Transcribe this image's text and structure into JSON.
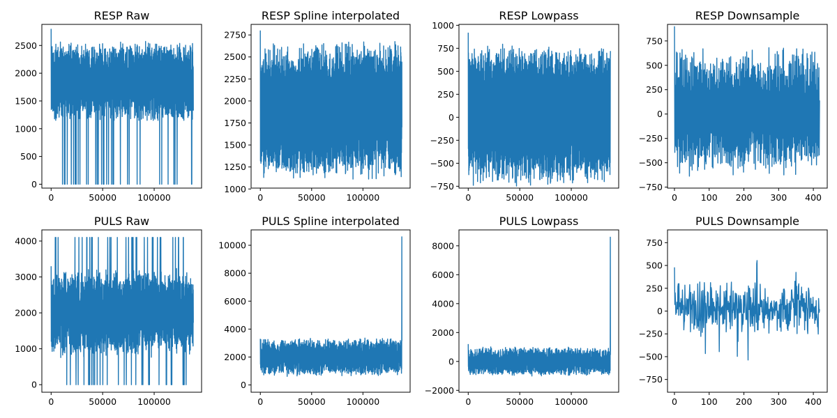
{
  "figure": {
    "background": "#ffffff",
    "line_color": "#1f77b4"
  },
  "chart_data": [
    {
      "type": "line",
      "title": "RESP Raw",
      "xlim": [
        -9000,
        146000
      ],
      "ylim": [
        -70,
        2880
      ],
      "xticks": [
        0,
        50000,
        100000
      ],
      "xtick_labels": [
        "0",
        "50000",
        "100000"
      ],
      "yticks": [
        0,
        500,
        1000,
        1500,
        2000,
        2500
      ],
      "ytick_labels": [
        "0",
        "500",
        "1000",
        "1500",
        "2000",
        "2500"
      ],
      "series": [
        {
          "x_range": [
            0,
            138000
          ],
          "points": 1200,
          "signal": {
            "kind": "dropout",
            "base": 1850,
            "amp": 500,
            "noise": 250,
            "clip_lo": 1150,
            "clip_hi": 2780,
            "drop": 0.035,
            "drop_val": 0,
            "seed": 11,
            "start": 2800
          }
        }
      ]
    },
    {
      "type": "line",
      "title": "RESP Spline interpolated",
      "xlim": [
        -9000,
        146000
      ],
      "ylim": [
        1010,
        2870
      ],
      "xticks": [
        0,
        50000,
        100000
      ],
      "xtick_labels": [
        "0",
        "50000",
        "100000"
      ],
      "yticks": [
        1000,
        1250,
        1500,
        1750,
        2000,
        2250,
        2500,
        2750
      ],
      "ytick_labels": [
        "1000",
        "1250",
        "1500",
        "1750",
        "2000",
        "2250",
        "2500",
        "2750"
      ],
      "series": [
        {
          "x_range": [
            0,
            138000
          ],
          "points": 1200,
          "signal": {
            "kind": "osc",
            "base": 1900,
            "amp": 620,
            "noise": 180,
            "clip_lo": 1080,
            "clip_hi": 2760,
            "seed": 12,
            "start": 2800,
            "end": 1700
          }
        }
      ]
    },
    {
      "type": "line",
      "title": "RESP Lowpass",
      "xlim": [
        -9000,
        146000
      ],
      "ylim": [
        -770,
        1010
      ],
      "xticks": [
        0,
        50000,
        100000
      ],
      "xtick_labels": [
        "0",
        "50000",
        "100000"
      ],
      "yticks": [
        -750,
        -500,
        -250,
        0,
        250,
        500,
        750,
        1000
      ],
      "ytick_labels": [
        "−750",
        "−500",
        "−250",
        "0",
        "250",
        "500",
        "750",
        "1000"
      ],
      "series": [
        {
          "x_range": [
            0,
            138000
          ],
          "points": 1200,
          "signal": {
            "kind": "osc",
            "base": 30,
            "amp": 620,
            "noise": 160,
            "clip_lo": -750,
            "clip_hi": 870,
            "seed": 13,
            "start": 920,
            "end": 720
          }
        }
      ]
    },
    {
      "type": "line",
      "title": "RESP Downsample",
      "xlim": [
        -20,
        440
      ],
      "ylim": [
        -760,
        920
      ],
      "xticks": [
        0,
        100,
        200,
        300,
        400
      ],
      "xtick_labels": [
        "0",
        "100",
        "200",
        "300",
        "400"
      ],
      "yticks": [
        -750,
        -500,
        -250,
        0,
        250,
        500,
        750
      ],
      "ytick_labels": [
        "−750",
        "−500",
        "−250",
        "0",
        "250",
        "500",
        "750"
      ],
      "series": [
        {
          "x_range": [
            0,
            418
          ],
          "points": 419,
          "signal": {
            "kind": "osc",
            "base": 20,
            "amp": 560,
            "noise": 130,
            "clip_lo": -680,
            "clip_hi": 700,
            "seed": 14,
            "start": 900,
            "end": 140
          }
        }
      ]
    },
    {
      "type": "line",
      "title": "PULS Raw",
      "xlim": [
        -9000,
        146000
      ],
      "ylim": [
        -210,
        4310
      ],
      "xticks": [
        0,
        50000,
        100000
      ],
      "xtick_labels": [
        "0",
        "50000",
        "100000"
      ],
      "yticks": [
        0,
        1000,
        2000,
        3000,
        4000
      ],
      "ytick_labels": [
        "0",
        "1000",
        "2000",
        "3000",
        "4000"
      ],
      "series": [
        {
          "x_range": [
            0,
            138000
          ],
          "points": 1200,
          "signal": {
            "kind": "spiky",
            "base": 2000,
            "amp": 800,
            "noise": 450,
            "spike": 0.07,
            "spike_hi": 4100,
            "spike_lo": 0,
            "clip_lo": 0,
            "clip_hi": 4100,
            "seed": 21,
            "start": 3300
          }
        }
      ]
    },
    {
      "type": "line",
      "title": "PULS Spline interpolated",
      "xlim": [
        -9000,
        146000
      ],
      "ylim": [
        -520,
        11100
      ],
      "xticks": [
        0,
        50000,
        100000
      ],
      "xtick_labels": [
        "0",
        "50000",
        "100000"
      ],
      "yticks": [
        0,
        2000,
        4000,
        6000,
        8000,
        10000
      ],
      "ytick_labels": [
        "0",
        "2000",
        "4000",
        "6000",
        "8000",
        "10000"
      ],
      "series": [
        {
          "x_range": [
            0,
            138000
          ],
          "points": 1200,
          "signal": {
            "kind": "band",
            "base": 2000,
            "amp": 900,
            "noise": 500,
            "clip_lo": 0,
            "clip_hi": 4100,
            "seed": 22,
            "start": 3300,
            "spike_end": 10600
          }
        }
      ]
    },
    {
      "type": "line",
      "title": "PULS Lowpass",
      "xlim": [
        -9000,
        146000
      ],
      "ylim": [
        -2130,
        9100
      ],
      "xticks": [
        0,
        50000,
        100000
      ],
      "xtick_labels": [
        "0",
        "50000",
        "100000"
      ],
      "yticks": [
        -2000,
        0,
        2000,
        4000,
        6000,
        8000
      ],
      "ytick_labels": [
        "−2000",
        "0",
        "2000",
        "4000",
        "6000",
        "8000"
      ],
      "series": [
        {
          "x_range": [
            0,
            138000
          ],
          "points": 1200,
          "signal": {
            "kind": "band",
            "base": 0,
            "amp": 650,
            "noise": 380,
            "clip_lo": -1600,
            "clip_hi": 1600,
            "seed": 23,
            "start": 1200,
            "spike_end": 8600
          }
        }
      ]
    },
    {
      "type": "line",
      "title": "PULS Downsample",
      "xlim": [
        -20,
        440
      ],
      "ylim": [
        -890,
        890
      ],
      "xticks": [
        0,
        100,
        200,
        300,
        400
      ],
      "xtick_labels": [
        "0",
        "100",
        "200",
        "300",
        "400"
      ],
      "yticks": [
        -750,
        -500,
        -250,
        0,
        250,
        500,
        750
      ],
      "ytick_labels": [
        "−750",
        "−500",
        "−250",
        "0",
        "250",
        "500",
        "750"
      ],
      "series": [
        {
          "x_range": [
            0,
            418
          ],
          "points": 419,
          "signal": {
            "kind": "noise",
            "base": 30,
            "amp": 170,
            "noise": 140,
            "clip_lo": -810,
            "clip_hi": 820,
            "seed": 24,
            "start": 480,
            "end": 20
          }
        }
      ]
    }
  ]
}
